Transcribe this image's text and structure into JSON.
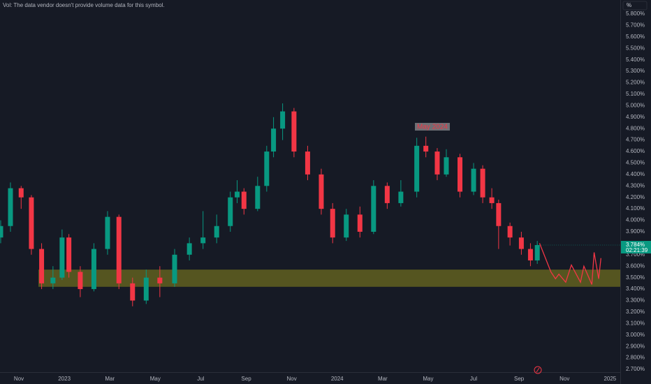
{
  "chart_data": {
    "type": "candlestick",
    "note_text": "Vol: The data vendor doesn't provide volume data for this symbol.",
    "axis_unit_button": "%",
    "annotation": "May 2024",
    "xlim": [
      -0.83,
      26.45
    ],
    "ylim": [
      2.7,
      5.8
    ],
    "grid": false,
    "up_color": "#089981",
    "down_color": "#f23645",
    "xticks": [
      {
        "value": 0,
        "label": "Nov"
      },
      {
        "value": 2,
        "label": "2023"
      },
      {
        "value": 4,
        "label": "Mar"
      },
      {
        "value": 6,
        "label": "May"
      },
      {
        "value": 8,
        "label": "Jul"
      },
      {
        "value": 10,
        "label": "Sep"
      },
      {
        "value": 12,
        "label": "Nov"
      },
      {
        "value": 14,
        "label": "2024"
      },
      {
        "value": 16,
        "label": "Mar"
      },
      {
        "value": 18,
        "label": "May"
      },
      {
        "value": 20,
        "label": "Jul"
      },
      {
        "value": 22,
        "label": "Sep"
      },
      {
        "value": 24,
        "label": "Nov"
      },
      {
        "value": 26,
        "label": "2025"
      }
    ],
    "yticks": [
      {
        "value": 2.7,
        "label": "2.700%"
      },
      {
        "value": 2.8,
        "label": "2.800%"
      },
      {
        "value": 2.9,
        "label": "2.900%"
      },
      {
        "value": 3.0,
        "label": "3.000%"
      },
      {
        "value": 3.1,
        "label": "3.100%"
      },
      {
        "value": 3.2,
        "label": "3.200%"
      },
      {
        "value": 3.3,
        "label": "3.300%"
      },
      {
        "value": 3.4,
        "label": "3.400%"
      },
      {
        "value": 3.5,
        "label": "3.500%"
      },
      {
        "value": 3.6,
        "label": "3.600%"
      },
      {
        "value": 3.7,
        "label": "3.700%"
      },
      {
        "value": 3.9,
        "label": "3.900%"
      },
      {
        "value": 4.0,
        "label": "4.000%"
      },
      {
        "value": 4.1,
        "label": "4.100%"
      },
      {
        "value": 4.2,
        "label": "4.200%"
      },
      {
        "value": 4.3,
        "label": "4.300%"
      },
      {
        "value": 4.4,
        "label": "4.400%"
      },
      {
        "value": 4.5,
        "label": "4.500%"
      },
      {
        "value": 4.6,
        "label": "4.600%"
      },
      {
        "value": 4.7,
        "label": "4.700%"
      },
      {
        "value": 4.8,
        "label": "4.800%"
      },
      {
        "value": 4.9,
        "label": "4.900%"
      },
      {
        "value": 5.0,
        "label": "5.000%"
      },
      {
        "value": 5.1,
        "label": "5.100%"
      },
      {
        "value": 5.2,
        "label": "5.200%"
      },
      {
        "value": 5.3,
        "label": "5.300%"
      },
      {
        "value": 5.4,
        "label": "5.400%"
      },
      {
        "value": 5.5,
        "label": "5.500%"
      },
      {
        "value": 5.6,
        "label": "5.600%"
      },
      {
        "value": 5.7,
        "label": "5.700%"
      },
      {
        "value": 5.8,
        "label": "5.800%"
      }
    ],
    "last_price": {
      "value": 3.784,
      "label": "3.784%"
    },
    "countdown": "02:21:39",
    "zone": {
      "from": 3.42,
      "to": 3.57,
      "x_start": 0.86,
      "color": "#6b6a1f"
    },
    "candles": {
      "x": [
        -0.8,
        -0.37,
        0.1,
        0.55,
        1.0,
        1.5,
        1.9,
        2.2,
        2.7,
        3.3,
        3.9,
        4.4,
        5.0,
        5.6,
        6.2,
        6.85,
        7.5,
        8.1,
        8.7,
        9.3,
        9.6,
        9.9,
        10.5,
        10.9,
        11.2,
        11.6,
        12.1,
        12.7,
        13.3,
        13.8,
        14.4,
        15.0,
        15.6,
        16.2,
        16.8,
        17.5,
        17.9,
        18.4,
        18.8,
        19.4,
        20.0,
        20.4,
        20.8,
        21.1,
        21.6,
        22.1,
        22.5,
        22.8
      ],
      "open": [
        3.85,
        3.95,
        4.28,
        4.2,
        3.75,
        3.45,
        3.5,
        3.85,
        3.55,
        3.4,
        3.75,
        4.03,
        3.45,
        3.3,
        3.5,
        3.45,
        3.7,
        3.8,
        3.85,
        3.95,
        4.2,
        4.25,
        4.1,
        4.3,
        4.6,
        4.8,
        4.95,
        4.6,
        4.4,
        4.1,
        3.85,
        4.05,
        3.9,
        4.3,
        4.15,
        4.25,
        4.65,
        4.6,
        4.4,
        4.55,
        4.25,
        4.45,
        4.2,
        4.15,
        3.95,
        3.85,
        3.75,
        3.65
      ],
      "high": [
        4.0,
        4.33,
        4.3,
        4.22,
        3.8,
        3.6,
        3.92,
        3.88,
        3.6,
        3.8,
        4.08,
        4.05,
        3.5,
        3.57,
        3.6,
        3.75,
        3.85,
        4.08,
        4.05,
        4.25,
        4.35,
        4.28,
        4.38,
        4.65,
        4.9,
        5.02,
        4.98,
        4.65,
        4.45,
        4.15,
        4.1,
        4.12,
        4.35,
        4.33,
        4.35,
        4.72,
        4.73,
        4.63,
        4.62,
        4.58,
        4.5,
        4.48,
        4.28,
        4.18,
        3.98,
        3.9,
        3.8,
        3.82
      ],
      "low": [
        3.8,
        3.9,
        4.1,
        3.7,
        3.4,
        3.4,
        3.48,
        3.5,
        3.33,
        3.38,
        3.7,
        3.4,
        3.25,
        3.27,
        3.33,
        3.42,
        3.65,
        3.75,
        3.8,
        3.9,
        4.15,
        4.05,
        4.08,
        4.25,
        4.55,
        4.7,
        4.55,
        4.35,
        4.05,
        3.8,
        3.82,
        3.85,
        3.88,
        4.1,
        4.12,
        4.2,
        4.55,
        4.35,
        4.38,
        4.2,
        4.22,
        4.15,
        4.1,
        3.75,
        3.78,
        3.7,
        3.6,
        3.62
      ],
      "close": [
        3.95,
        4.28,
        4.2,
        3.75,
        3.45,
        3.5,
        3.85,
        3.55,
        3.4,
        3.75,
        4.03,
        3.45,
        3.3,
        3.5,
        3.45,
        3.7,
        3.8,
        3.85,
        3.95,
        4.2,
        4.25,
        4.1,
        4.3,
        4.6,
        4.8,
        4.95,
        4.6,
        4.4,
        4.1,
        3.85,
        4.05,
        3.9,
        4.3,
        4.15,
        4.25,
        4.65,
        4.6,
        4.4,
        4.55,
        4.25,
        4.45,
        4.2,
        4.15,
        3.95,
        3.85,
        3.75,
        3.65,
        3.784
      ]
    },
    "projection": {
      "color": "#f23645",
      "x": [
        22.9,
        23.4,
        23.6,
        23.75,
        24.05,
        24.3,
        24.7,
        24.85,
        25.2,
        25.3,
        25.5,
        25.6
      ],
      "y": [
        3.8,
        3.55,
        3.49,
        3.53,
        3.46,
        3.61,
        3.46,
        3.6,
        3.44,
        3.72,
        3.49,
        3.67
      ]
    }
  }
}
